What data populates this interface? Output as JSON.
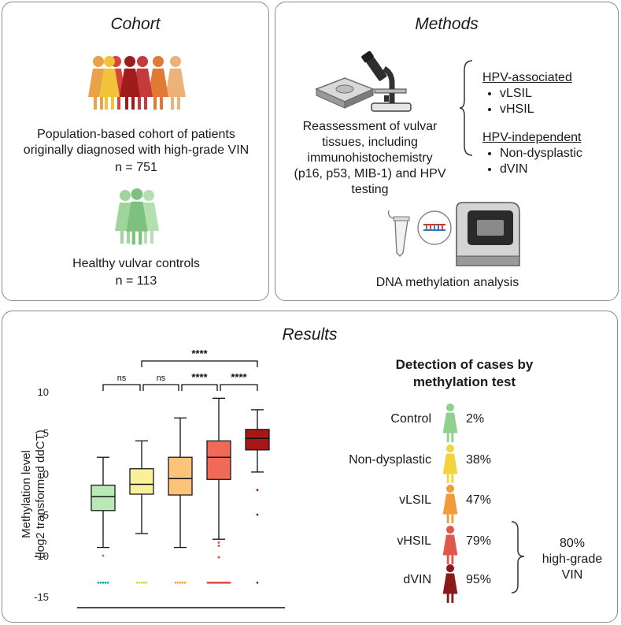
{
  "cohort": {
    "title": "Cohort",
    "patients_text": "Population-based cohort of patients originally diagnosed with high-grade VIN",
    "patients_n": "n = 751",
    "controls_text": "Healthy vulvar controls",
    "controls_n": "n = 113",
    "patient_colors": [
      "#e8a24a",
      "#d9453a",
      "#f2c23a",
      "#9e1c1c",
      "#c53a3a",
      "#e07a35",
      "#ecb27a"
    ],
    "control_colors": [
      "#9fd49a",
      "#7cc27e",
      "#b4dfae"
    ]
  },
  "methods": {
    "title": "Methods",
    "reassessment_text": "Reassessment of vulvar tissues, including immunohistochemistry (p16, p53, MIB-1) and HPV testing",
    "hpv_associated": {
      "heading": "HPV-associated",
      "items": [
        "vLSIL",
        "vHSIL"
      ]
    },
    "hpv_independent": {
      "heading": "HPV-independent",
      "items": [
        "Non-dysplastic",
        "dVIN"
      ]
    },
    "dna_text": "DNA methylation analysis"
  },
  "results": {
    "title": "Results",
    "detection_title_line1": "Detection of cases by",
    "detection_title_line2": "methylation test",
    "detection": [
      {
        "label": "Control",
        "pct": "2%",
        "color": "#8fd08f"
      },
      {
        "label": "Non-dysplastic",
        "pct": "38%",
        "color": "#f5d33c"
      },
      {
        "label": "vLSIL",
        "pct": "47%",
        "color": "#f29a3c"
      },
      {
        "label": "vHSIL",
        "pct": "79%",
        "color": "#e0574c"
      },
      {
        "label": "dVIN",
        "pct": "95%",
        "color": "#8a1a1a"
      }
    ],
    "highgrade": {
      "pct": "80%",
      "line1": "high-grade",
      "line2": "VIN"
    },
    "significance": {
      "top": "****",
      "pairs": [
        "ns",
        "ns",
        "****",
        "****"
      ]
    }
  },
  "chart_data": {
    "type": "box",
    "ylabel_line1": "Methylation level",
    "ylabel_line2": "(log2 transformed ddCT)",
    "yticks": [
      10,
      5,
      0,
      -5,
      -10,
      -15
    ],
    "ytick_labels": [
      "10",
      "5",
      "0",
      "-5",
      "-10",
      "-15"
    ],
    "ylim": [
      -15,
      10
    ],
    "series": [
      {
        "fill": "#b9eab6",
        "stroke": "#1a1a1a",
        "whisker_low": -9,
        "q1": -4.5,
        "median": -2.8,
        "q3": -1.4,
        "whisker_high": 2,
        "outliers": [
          -10
        ],
        "floor_color": "#1aa39a"
      },
      {
        "fill": "#fbf09a",
        "stroke": "#1a1a1a",
        "whisker_low": -7.3,
        "q1": -2.5,
        "median": -1.3,
        "q3": 0.6,
        "whisker_high": 4,
        "outliers": [],
        "floor_color": "#e7d32a"
      },
      {
        "fill": "#fbc47a",
        "stroke": "#1a1a1a",
        "whisker_low": -9,
        "q1": -2.6,
        "median": -0.6,
        "q3": 2,
        "whisker_high": 6.8,
        "outliers": [],
        "floor_color": "#f2a230"
      },
      {
        "fill": "#f06a57",
        "stroke": "#1a1a1a",
        "whisker_low": -8,
        "q1": -0.7,
        "median": 2,
        "q3": 4,
        "whisker_high": 9.2,
        "outliers": [
          -8.4,
          -8.8,
          -10.2
        ],
        "floor_color": "#e0463a"
      },
      {
        "fill": "#a81616",
        "stroke": "#1a1a1a",
        "whisker_low": 0.2,
        "q1": 2.9,
        "median": 4.3,
        "q3": 5.4,
        "whisker_high": 7.8,
        "outliers": [
          -2,
          -5
        ],
        "floor_color": "#8a1010"
      }
    ],
    "floor_value": -13.3
  }
}
